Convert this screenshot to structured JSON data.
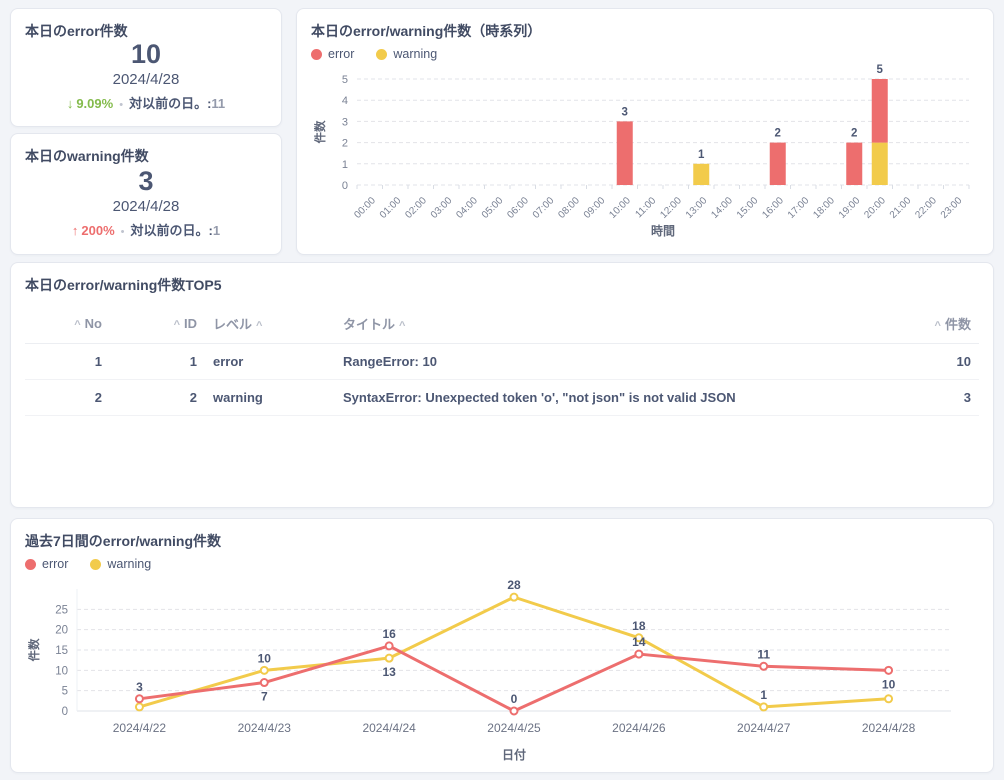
{
  "cards": {
    "error_scalar": {
      "title": "本日のerror件数",
      "value": "10",
      "date": "2024/4/28",
      "trend_arrow": "↓",
      "trend_percent": "9.09%",
      "separator": "•",
      "compare_label": "対以前の日。:",
      "compare_value": "11",
      "trend_color": "#84BB4C"
    },
    "warning_scalar": {
      "title": "本日のwarning件数",
      "value": "3",
      "date": "2024/4/28",
      "trend_arrow": "↑",
      "trend_percent": "200%",
      "separator": "•",
      "compare_label": "対以前の日。:",
      "compare_value": "1",
      "trend_color": "#ED6E6E"
    }
  },
  "table": {
    "title": "本日のerror/warning件数TOP5",
    "columns": [
      {
        "label": "No",
        "align": "right",
        "caret": "before",
        "width": 85
      },
      {
        "label": "ID",
        "align": "right",
        "caret": "before",
        "width": 95
      },
      {
        "label": "レベル",
        "align": "left",
        "caret": "after",
        "width": 130
      },
      {
        "label": "タイトル",
        "align": "left",
        "caret": "after",
        "width": 0
      },
      {
        "label": "件数",
        "align": "right",
        "caret": "before",
        "width": 110
      }
    ],
    "rows": [
      [
        "1",
        "1",
        "error",
        "RangeError: 10",
        "10"
      ],
      [
        "2",
        "2",
        "warning",
        "SyntaxError: Unexpected token 'o', \"not json\" is not valid JSON",
        "3"
      ]
    ],
    "sort_caret": "^"
  },
  "chart_data": [
    {
      "type": "bar",
      "stacked": true,
      "title": "本日のerror/warning件数（時系列）",
      "categories": [
        "00:00",
        "01:00",
        "02:00",
        "03:00",
        "04:00",
        "05:00",
        "06:00",
        "07:00",
        "08:00",
        "09:00",
        "10:00",
        "11:00",
        "12:00",
        "13:00",
        "14:00",
        "15:00",
        "16:00",
        "17:00",
        "18:00",
        "19:00",
        "20:00",
        "21:00",
        "22:00",
        "23:00"
      ],
      "series": [
        {
          "name": "warning",
          "color": "#F2CB4B",
          "values": [
            0,
            0,
            0,
            0,
            0,
            0,
            0,
            0,
            0,
            0,
            0,
            0,
            0,
            1,
            0,
            0,
            0,
            0,
            0,
            0,
            2,
            0,
            0,
            0
          ]
        },
        {
          "name": "error",
          "color": "#ED6E6E",
          "values": [
            0,
            0,
            0,
            0,
            0,
            0,
            0,
            0,
            0,
            0,
            3,
            0,
            0,
            0,
            0,
            0,
            2,
            0,
            0,
            2,
            3,
            0,
            0,
            0
          ]
        }
      ],
      "total_labels": {
        "10:00": 3,
        "13:00": 1,
        "16:00": 2,
        "19:00": 2,
        "20:00": 5
      },
      "xlabel": "時間",
      "ylabel": "件数",
      "ylim": [
        0,
        5
      ],
      "yticks": [
        0,
        1,
        2,
        3,
        4,
        5
      ],
      "grid": "dashed",
      "legend_position": "top-left"
    },
    {
      "type": "line",
      "title": "過去7日間のerror/warning件数",
      "categories": [
        "2024/4/22",
        "2024/4/23",
        "2024/4/24",
        "2024/4/25",
        "2024/4/26",
        "2024/4/27",
        "2024/4/28"
      ],
      "series": [
        {
          "name": "warning",
          "color": "#F2CB4B",
          "values": [
            1,
            10,
            13,
            28,
            18,
            1,
            3
          ],
          "label_placement": [
            null,
            "above",
            "below",
            "above",
            "above",
            "above",
            null
          ]
        },
        {
          "name": "error",
          "color": "#ED6E6E",
          "values": [
            3,
            7,
            16,
            0,
            14,
            11,
            10
          ],
          "label_placement": [
            "above",
            "below",
            "above",
            "above",
            "above",
            "above",
            "below"
          ]
        }
      ],
      "xlabel": "日付",
      "ylabel": "件数",
      "ylim": [
        0,
        30
      ],
      "yticks": [
        0,
        5,
        10,
        15,
        20,
        25
      ],
      "grid": "dashed",
      "legend_position": "top-left"
    }
  ]
}
